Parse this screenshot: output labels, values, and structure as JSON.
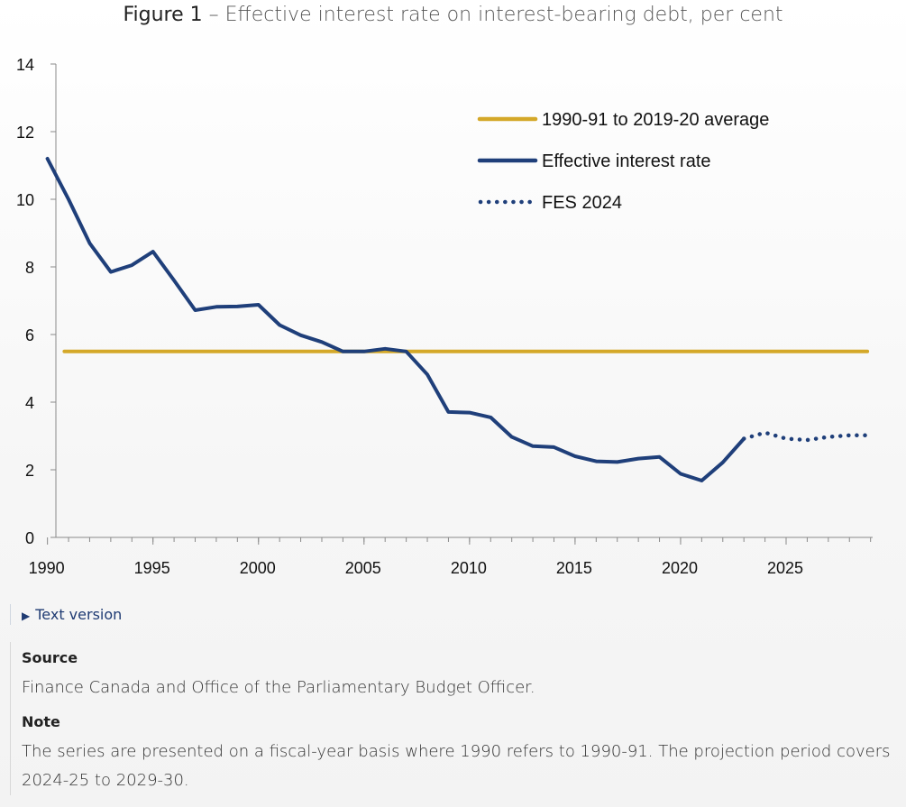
{
  "figure": {
    "title_lead": "Figure 1",
    "title_rest": "– Effective interest rate on interest-bearing debt, per cent"
  },
  "chart_data": {
    "type": "line",
    "xlim": [
      1990,
      2029
    ],
    "ylim": [
      0,
      14
    ],
    "x_ticks": [
      1990,
      1995,
      2000,
      2005,
      2010,
      2015,
      2020,
      2025
    ],
    "y_ticks": [
      0,
      2,
      4,
      6,
      8,
      10,
      12,
      14
    ],
    "legend_position": "top-right",
    "series": [
      {
        "name": "1990-91 to 2019-20 average",
        "color": "#d4a829",
        "style": "solid",
        "x": [
          1990,
          2029
        ],
        "y": [
          5.5,
          5.5
        ]
      },
      {
        "name": "Effective interest rate",
        "color": "#1f3f7a",
        "style": "solid",
        "x": [
          1990,
          1991,
          1992,
          1993,
          1994,
          1995,
          1996,
          1997,
          1998,
          1999,
          2000,
          2001,
          2002,
          2003,
          2004,
          2005,
          2006,
          2007,
          2008,
          2009,
          2010,
          2011,
          2012,
          2013,
          2014,
          2015,
          2016,
          2017,
          2018,
          2019,
          2020,
          2021,
          2022,
          2023
        ],
        "y": [
          11.2,
          10.0,
          8.7,
          7.85,
          8.05,
          8.45,
          7.6,
          6.72,
          6.82,
          6.83,
          6.88,
          6.28,
          5.98,
          5.78,
          5.5,
          5.5,
          5.58,
          5.5,
          4.82,
          3.71,
          3.69,
          3.55,
          2.97,
          2.7,
          2.67,
          2.4,
          2.25,
          2.23,
          2.33,
          2.38,
          1.88,
          1.68,
          2.22,
          2.92
        ]
      },
      {
        "name": "FES 2024",
        "color": "#1f3f7a",
        "style": "dotted",
        "x": [
          2023,
          2024,
          2025,
          2026,
          2027,
          2028,
          2029
        ],
        "y": [
          2.92,
          3.1,
          2.92,
          2.88,
          2.97,
          3.02,
          3.02
        ]
      }
    ]
  },
  "details": {
    "label": "Text version"
  },
  "source": {
    "heading": "Source",
    "text": "Finance Canada and Office of the Parliamentary Budget Officer."
  },
  "note": {
    "heading": "Note",
    "text": "The series are presented on a fiscal-year basis where 1990 refers to 1990-91. The projection period covers 2024-25 to 2029-30."
  }
}
